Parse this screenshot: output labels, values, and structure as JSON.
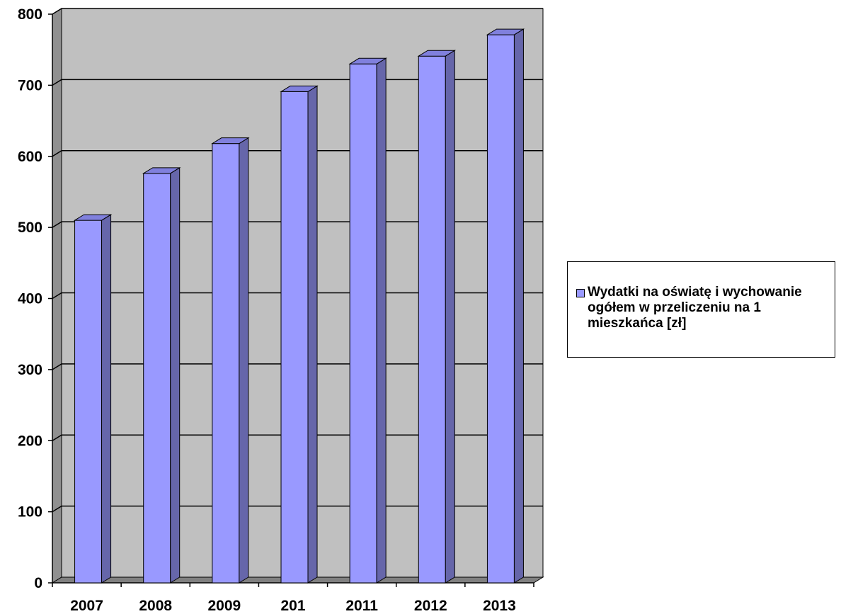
{
  "chart_data": {
    "type": "bar",
    "categories": [
      "2007",
      "2008",
      "2009",
      "201",
      "2011",
      "2012",
      "2013"
    ],
    "series": [
      {
        "name": "Wydatki na oświatę i wychowanie ogółem w przeliczeniu na 1 mieszkańca [zł]",
        "values": [
          510,
          576,
          618,
          691,
          730,
          741,
          771
        ]
      }
    ],
    "y_ticks": [
      "0",
      "100",
      "200",
      "300",
      "400",
      "500",
      "600",
      "700",
      "800"
    ],
    "ylim": [
      0,
      800
    ],
    "grid": true,
    "legend_position": "right",
    "colors": {
      "bar_front": "#9999ff",
      "bar_side": "#6666aa",
      "bar_top": "#8080dd",
      "plot_back": "#c0c0c0",
      "plot_wall": "#909090",
      "plot_floor": "#808080"
    }
  }
}
